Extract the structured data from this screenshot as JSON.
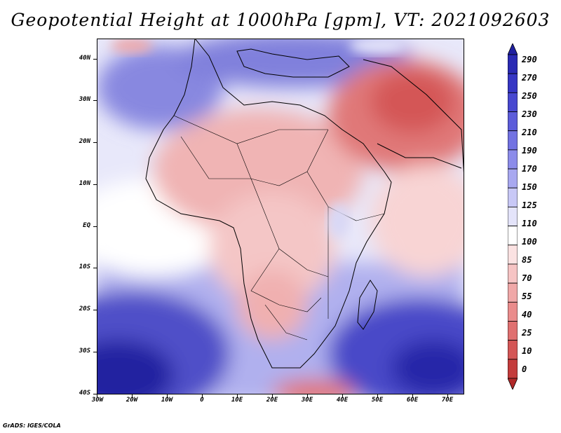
{
  "title": "Geopotential Height at 1000hPa [gpm], VT: 2021092603",
  "credit": "GrADS: IGES/COLA",
  "lat_axis": [
    "40N",
    "30N",
    "20N",
    "10N",
    "EQ",
    "10S",
    "20S",
    "30S",
    "40S"
  ],
  "lon_axis": [
    "30W",
    "20W",
    "10W",
    "0",
    "10E",
    "20E",
    "30E",
    "40E",
    "50E",
    "60E",
    "70E"
  ],
  "colorbar": {
    "levels": [
      "290",
      "270",
      "250",
      "230",
      "210",
      "190",
      "170",
      "150",
      "125",
      "110",
      "100",
      "85",
      "70",
      "55",
      "40",
      "25",
      "10",
      "0"
    ],
    "colors": [
      "#2020a0",
      "#2a2ab4",
      "#3636c4",
      "#4848d0",
      "#5c5cda",
      "#7272e2",
      "#8c8cea",
      "#a8a8f0",
      "#c8c8f6",
      "#e4e4fa",
      "#ffffff",
      "#fbe2e2",
      "#f6c4c4",
      "#f0a8a8",
      "#ea8c8c",
      "#e07070",
      "#d45656",
      "#c43c3c",
      "#b02828"
    ]
  }
}
